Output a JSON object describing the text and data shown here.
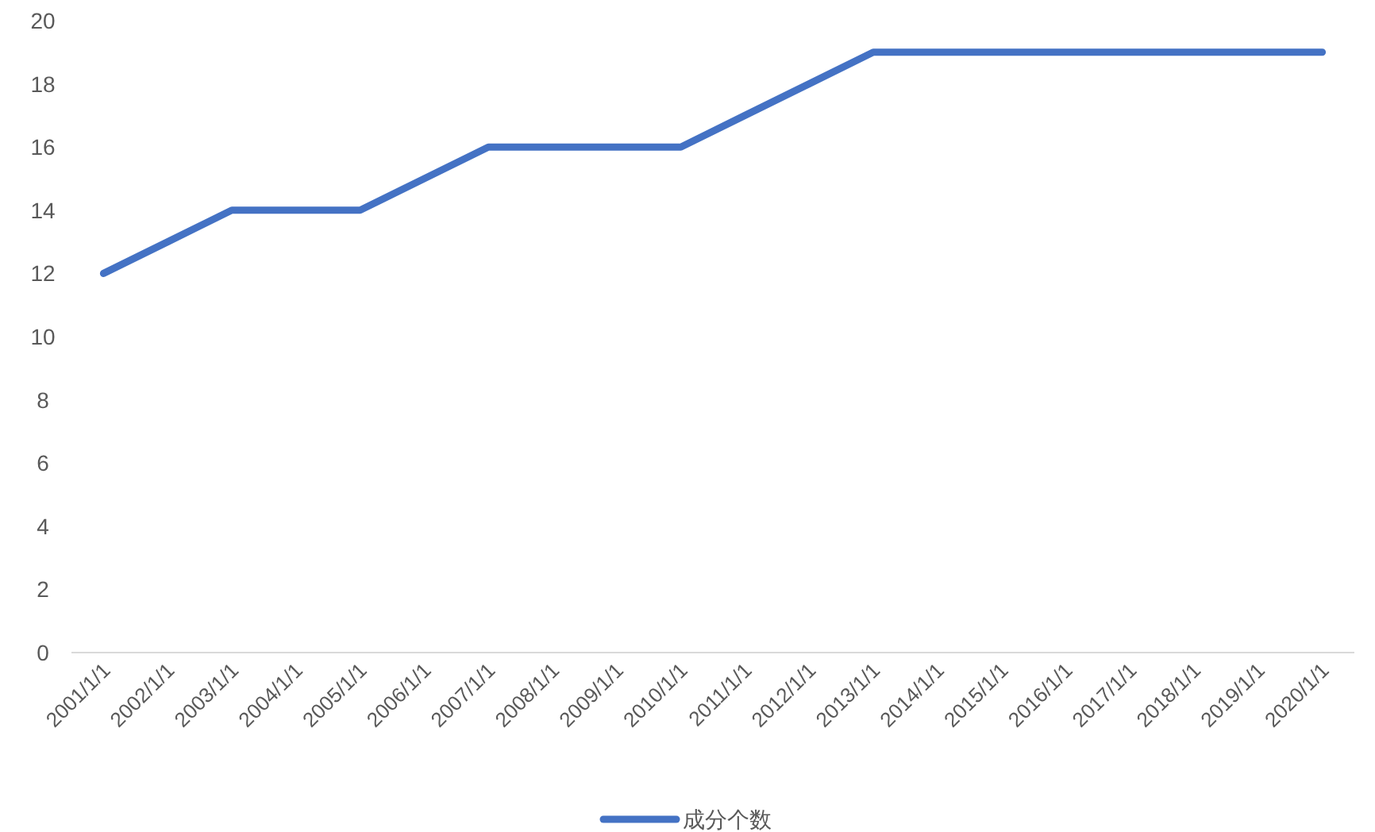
{
  "chart_data": {
    "type": "line",
    "categories": [
      "2001/1/1",
      "2002/1/1",
      "2003/1/1",
      "2004/1/1",
      "2005/1/1",
      "2006/1/1",
      "2007/1/1",
      "2008/1/1",
      "2009/1/1",
      "2010/1/1",
      "2011/1/1",
      "2012/1/1",
      "2013/1/1",
      "2014/1/1",
      "2015/1/1",
      "2016/1/1",
      "2017/1/1",
      "2018/1/1",
      "2019/1/1",
      "2020/1/1"
    ],
    "series": [
      {
        "name": "成分个数",
        "color": "#4472c4",
        "values": [
          12,
          13,
          14,
          14,
          14,
          15,
          16,
          16,
          16,
          16,
          17,
          18,
          19,
          19,
          19,
          19,
          19,
          19,
          19,
          19
        ]
      }
    ],
    "ylim": [
      0,
      20
    ],
    "yticks": [
      0,
      2,
      4,
      6,
      8,
      10,
      12,
      14,
      16,
      18,
      20
    ],
    "grid": false,
    "legend": "bottom",
    "marker": "none",
    "line_style": "solid"
  }
}
